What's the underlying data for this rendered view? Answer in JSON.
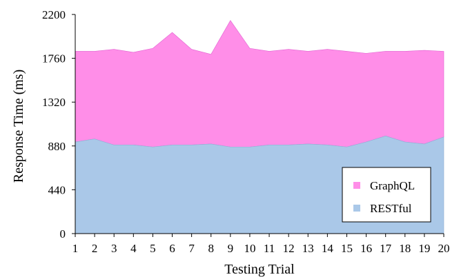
{
  "chart_data": {
    "type": "area",
    "stacked": true,
    "title": "",
    "xlabel": "Testing Trial",
    "ylabel": "Response Time (ms)",
    "x": [
      1,
      2,
      3,
      4,
      5,
      6,
      7,
      8,
      9,
      10,
      11,
      12,
      13,
      14,
      15,
      16,
      17,
      18,
      19,
      20
    ],
    "x_tick_labels": [
      "1",
      "2",
      "3",
      "4",
      "5",
      "6",
      "7",
      "8",
      "9",
      "10",
      "11",
      "12",
      "13",
      "14",
      "15",
      "16",
      "17",
      "18",
      "19",
      "20"
    ],
    "ylim": [
      0,
      2200
    ],
    "y_ticks": [
      0,
      440,
      880,
      1320,
      1760,
      2200
    ],
    "y_tick_labels": [
      "0",
      "440",
      "880",
      "1320",
      "1760",
      "2200"
    ],
    "grid": false,
    "legend_position": "bottom-right",
    "series": [
      {
        "name": "RESTful",
        "color": "#aac8e8",
        "values": [
          920,
          950,
          890,
          890,
          870,
          890,
          890,
          900,
          870,
          870,
          890,
          890,
          900,
          890,
          870,
          920,
          980,
          920,
          900,
          970
        ]
      },
      {
        "name": "GraphQL",
        "color": "#ff8ee8",
        "values": [
          910,
          880,
          960,
          930,
          990,
          1130,
          960,
          900,
          1270,
          990,
          940,
          960,
          930,
          960,
          960,
          890,
          850,
          910,
          940,
          860
        ]
      }
    ],
    "totals": [
      1830,
      1830,
      1850,
      1820,
      1860,
      2020,
      1850,
      1800,
      2140,
      1860,
      1830,
      1850,
      1830,
      1850,
      1830,
      1810,
      1830,
      1830,
      1840,
      1830
    ]
  }
}
